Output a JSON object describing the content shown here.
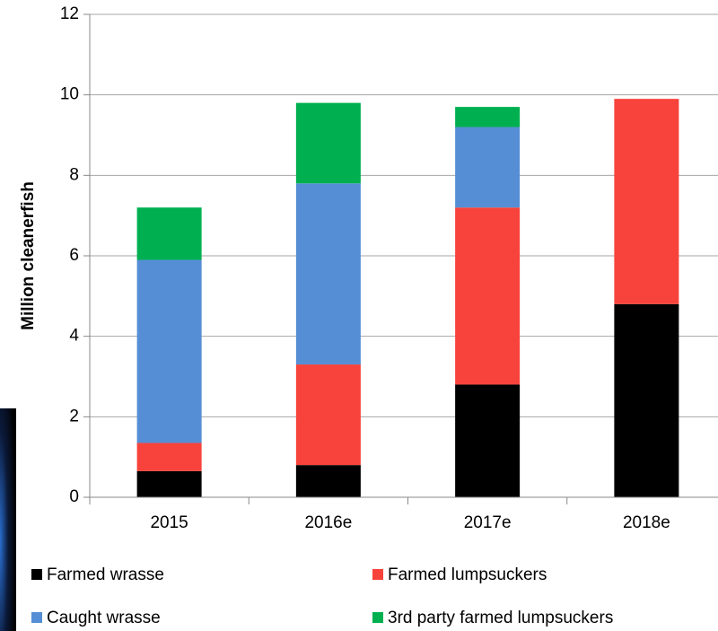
{
  "chart_data": {
    "type": "stacked_bar",
    "y_label": "Million cleanerfish",
    "categories": [
      "2015",
      "2016e",
      "2017e",
      "2018e"
    ],
    "series": [
      {
        "name": "Farmed wrasse",
        "color": "#000000",
        "values": [
          0.65,
          0.8,
          2.8,
          4.8
        ]
      },
      {
        "name": "Farmed lumpsuckers",
        "color": "#f7433b",
        "values": [
          0.7,
          2.5,
          4.4,
          5.1
        ]
      },
      {
        "name": "Caught wrasse",
        "color": "#558ed5",
        "values": [
          4.55,
          4.5,
          2.0,
          0
        ]
      },
      {
        "name": "3rd party farmed lumpsuckers",
        "color": "#00b050",
        "values": [
          1.3,
          2.0,
          0.5,
          0
        ]
      }
    ],
    "ylim": [
      0,
      12
    ],
    "yticks": [
      0,
      2,
      4,
      6,
      8,
      10,
      12
    ],
    "grid": true
  }
}
